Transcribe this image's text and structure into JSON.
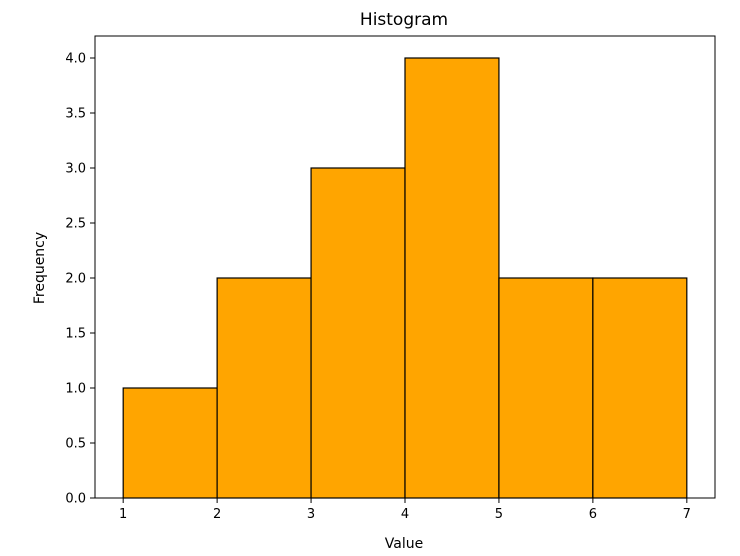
{
  "chart_data": {
    "type": "bar",
    "title": "Histogram",
    "xlabel": "Value",
    "ylabel": "Frequency",
    "bins": [
      {
        "start": 1,
        "end": 2,
        "count": 1
      },
      {
        "start": 2,
        "end": 3,
        "count": 2
      },
      {
        "start": 3,
        "end": 4,
        "count": 3
      },
      {
        "start": 4,
        "end": 5,
        "count": 4
      },
      {
        "start": 5,
        "end": 6,
        "count": 2
      },
      {
        "start": 6,
        "end": 7,
        "count": 2
      }
    ],
    "xlim": [
      0.7,
      7.3
    ],
    "ylim": [
      0,
      4.2
    ],
    "x_ticks": [
      "1",
      "2",
      "3",
      "4",
      "5",
      "6",
      "7"
    ],
    "y_ticks": [
      "0.0",
      "0.5",
      "1.0",
      "1.5",
      "2.0",
      "2.5",
      "3.0",
      "3.5",
      "4.0"
    ],
    "grid": false,
    "legend": "none",
    "colors": {
      "bar_fill": "#ffa500",
      "bar_edge": "#000000",
      "axes": "#000000",
      "background": "#ffffff"
    }
  }
}
